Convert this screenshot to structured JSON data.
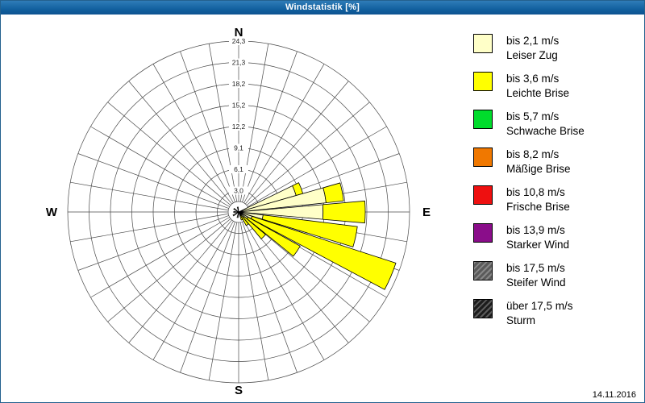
{
  "titlebar": {
    "title": "Windstatistik [%]"
  },
  "footer": {
    "date": "14.11.2016"
  },
  "chart_data": {
    "type": "windrose",
    "title": "Windstatistik [%]",
    "units": "%",
    "ring_labels": [
      "3,0",
      "6,1",
      "9,1",
      "12,2",
      "15,2",
      "18,2",
      "21,3",
      "24,3"
    ],
    "ring_max": 24.3,
    "rings": 8,
    "spoke_step_deg": 10,
    "petal_width_deg": 10,
    "compass_labels": {
      "n": "N",
      "e": "E",
      "s": "S",
      "w": "W"
    },
    "grid_color": "#4a4a4a",
    "classes": [
      {
        "id": "leiser_zug",
        "speed": "bis 2,1 m/s",
        "name": "Leiser Zug",
        "color": "#FFFFC8"
      },
      {
        "id": "leichte_brise",
        "speed": "bis 3,6 m/s",
        "name": "Leichte Brise",
        "color": "#FFFF00"
      },
      {
        "id": "schwache_brise",
        "speed": "bis 5,7 m/s",
        "name": "Schwache Brise",
        "color": "#00DC2C"
      },
      {
        "id": "maessige_brise",
        "speed": "bis 8,2 m/s",
        "name": "Mäßige Brise",
        "color": "#F07800"
      },
      {
        "id": "frische_brise",
        "speed": "bis 10,8 m/s",
        "name": "Frische Brise",
        "color": "#EE1010"
      },
      {
        "id": "starker_wind",
        "speed": "bis 13,9 m/s",
        "name": "Starker Wind",
        "color": "#8A0D8A"
      },
      {
        "id": "steifer_wind",
        "speed": "bis 17,5 m/s",
        "name": "Steifer Wind",
        "color": "#5A5A5A"
      },
      {
        "id": "sturm",
        "speed": "über 17,5 m/s",
        "name": "Sturm",
        "color": "#1C1C1C"
      }
    ],
    "petals": [
      {
        "dir_deg": 69,
        "segments": [
          [
            "leiser_zug",
            8.5
          ],
          [
            "leichte_brise",
            1.0
          ]
        ]
      },
      {
        "dir_deg": 79,
        "segments": [
          [
            "leiser_zug",
            12.5
          ],
          [
            "leichte_brise",
            2.5
          ]
        ]
      },
      {
        "dir_deg": 90,
        "segments": [
          [
            "leiser_zug",
            12.0
          ],
          [
            "leichte_brise",
            6.0
          ]
        ]
      },
      {
        "dir_deg": 102,
        "segments": [
          [
            "leiser_zug",
            3.5
          ],
          [
            "leichte_brise",
            13.5
          ]
        ]
      },
      {
        "dir_deg": 113,
        "segments": [
          [
            "leiser_zug",
            2.0
          ],
          [
            "leichte_brise",
            21.5
          ]
        ]
      },
      {
        "dir_deg": 124,
        "segments": [
          [
            "leiser_zug",
            1.5
          ],
          [
            "leichte_brise",
            8.5
          ]
        ]
      },
      {
        "dir_deg": 135,
        "segments": [
          [
            "leiser_zug",
            1.0
          ],
          [
            "leichte_brise",
            4.0
          ]
        ]
      },
      {
        "dir_deg": 146,
        "segments": [
          [
            "leichte_brise",
            2.2
          ]
        ]
      },
      {
        "dir_deg": 157,
        "segments": [
          [
            "leichte_brise",
            1.2
          ]
        ]
      },
      {
        "dir_deg": 191,
        "segments": [
          [
            "leiser_zug",
            0.8
          ]
        ]
      },
      {
        "dir_deg": 237,
        "segments": [
          [
            "leiser_zug",
            0.9
          ]
        ]
      },
      {
        "dir_deg": 270,
        "segments": [
          [
            "leiser_zug",
            0.7
          ]
        ]
      },
      {
        "dir_deg": 304,
        "segments": [
          [
            "leiser_zug",
            0.8
          ]
        ]
      },
      {
        "dir_deg": 349,
        "segments": [
          [
            "leiser_zug",
            0.7
          ]
        ]
      }
    ]
  }
}
